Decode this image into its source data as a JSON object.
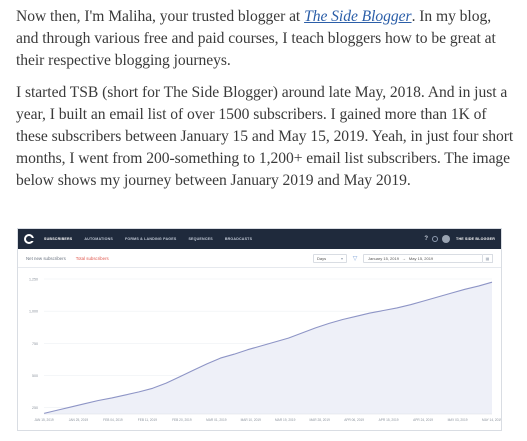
{
  "article": {
    "p1_before": "Now then, I'm Maliha, your trusted blogger at ",
    "p1_link": "The Side Blogger",
    "p1_after": ". In my blog, and through various free and paid courses, I teach bloggers how to be great at their respective blogging journeys.",
    "p2": "I started TSB (short for The Side Blogger) around late May, 2018. And in just a year, I built an email list of over 1500 subscribers. I gained more than 1K of these subscribers between January 15 and May 15, 2019. Yeah, in just four short months, I went from 200-something to 1,200+ email list subscribers. The image below shows my journey between January 2019 and May 2019."
  },
  "app": {
    "nav": [
      "SUBSCRIBERS",
      "AUTOMATIONS",
      "FORMS & LANDING PAGES",
      "SEQUENCES",
      "BROADCASTS"
    ],
    "help_label": "?",
    "account_name": "THE SIDE BLOGGER",
    "tabs": [
      "Net new subscribers",
      "Total subscribers"
    ],
    "interval_select": "Days",
    "date_from": "January 15, 2019",
    "date_sep": "→",
    "date_to": "May 15, 2019",
    "colors": {
      "topbar": "#1f2a3c",
      "accent_tab": "#e0584f",
      "area_fill": "#eef0f8",
      "line": "#8e95c6"
    }
  },
  "chart_data": {
    "type": "area",
    "title": "",
    "xlabel": "",
    "ylabel": "",
    "ylim": [
      200,
      1250
    ],
    "yticks": [
      "250",
      "500",
      "750",
      "1,000",
      "1,250"
    ],
    "ytick_values": [
      250,
      500,
      750,
      1000,
      1250
    ],
    "xticks": [
      "JAN 15, 2019",
      "JAN 25, 2019",
      "FEB 04, 2019",
      "FEB 11, 2019",
      "FEB 20, 2019",
      "MAR 01, 2019",
      "MAR 10, 2019",
      "MAR 19, 2019",
      "MAR 28, 2019",
      "APR 06, 2019",
      "APR 15, 2019",
      "APR 24, 2019",
      "MAY 03, 2019",
      "MAY 14, 2019"
    ],
    "series": [
      {
        "values": [
          205,
          230,
          255,
          280,
          305,
          325,
          348,
          372,
          400,
          440,
          490,
          540,
          590,
          635,
          665,
          700,
          730,
          760,
          790,
          830,
          870,
          905,
          935,
          960,
          985,
          1005,
          1025,
          1050,
          1080,
          1110,
          1140,
          1170,
          1195,
          1225
        ]
      }
    ]
  }
}
